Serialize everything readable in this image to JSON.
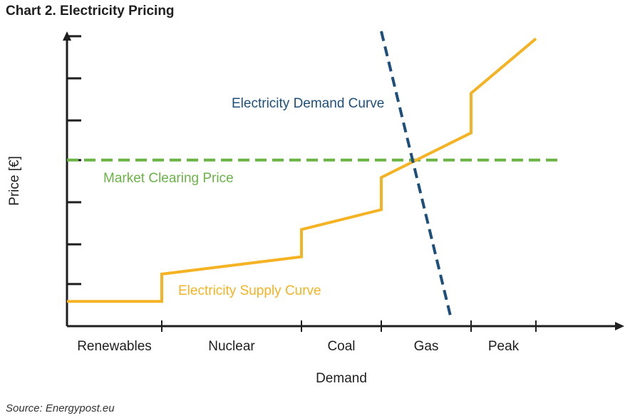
{
  "title": "Chart 2. Electricity Pricing",
  "source": "Source: Energypost.eu",
  "chart_data": {
    "type": "line",
    "title": "Chart 2. Electricity Pricing",
    "xlabel": "Demand",
    "ylabel": "Price [€]",
    "xlim": [
      0,
      100
    ],
    "ylim": [
      0,
      100
    ],
    "grid": false,
    "categories": [
      {
        "label": "Renewables",
        "from": 0,
        "to": 19
      },
      {
        "label": "Nuclear",
        "from": 19,
        "to": 47
      },
      {
        "label": "Coal",
        "from": 47,
        "to": 63
      },
      {
        "label": "Gas",
        "from": 63,
        "to": 81
      },
      {
        "label": "Peak",
        "from": 81,
        "to": 94
      }
    ],
    "y_ticks": [
      17,
      33,
      50,
      67,
      83,
      100,
      117
    ],
    "series": [
      {
        "name": "Electricity Supply Curve",
        "label": "Electricity Supply Curve",
        "color": "#f5b323",
        "style": "solid",
        "x": [
          0,
          19,
          19,
          47,
          47,
          63,
          63,
          81,
          81,
          94
        ],
        "y": [
          10,
          10,
          21,
          28,
          39,
          47,
          60,
          78,
          94,
          116
        ]
      },
      {
        "name": "Electricity Demand Curve",
        "label": "Electricity Demand Curve",
        "color": "#1d4f7c",
        "style": "dashed",
        "x": [
          63,
          77
        ],
        "y": [
          119,
          3
        ]
      },
      {
        "name": "Market Clearing Price",
        "label": "Market Clearing Price",
        "color": "#6ab446",
        "style": "dashed",
        "x": [
          0,
          99
        ],
        "y": [
          67,
          67
        ]
      }
    ]
  }
}
